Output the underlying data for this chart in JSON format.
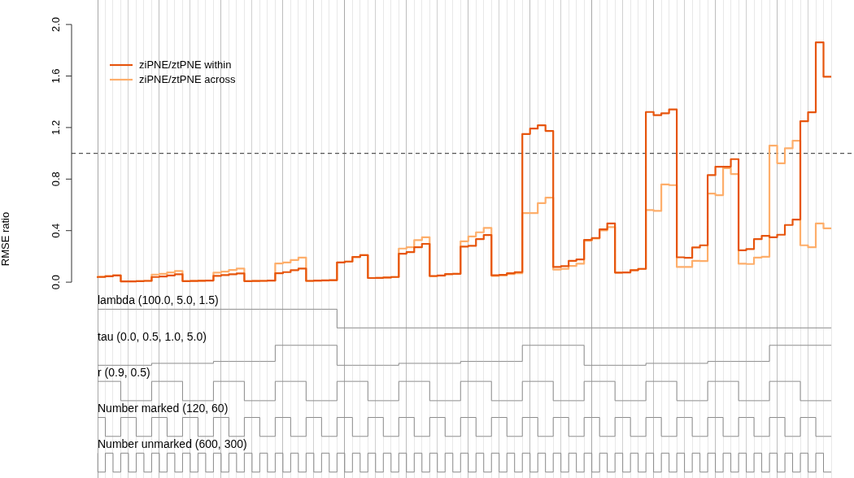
{
  "chart_data": {
    "type": "step",
    "ylabel": "RMSE ratio",
    "legend": "top left",
    "grid": "x",
    "tick_labels": "y",
    "categories": [
      null,
      null,
      null,
      null,
      null,
      null,
      null,
      null,
      null,
      null,
      null,
      null,
      null,
      null,
      null,
      null,
      null,
      null,
      null,
      null,
      null,
      null,
      null,
      null,
      null,
      null,
      null,
      null,
      null,
      null,
      null,
      null,
      null,
      null,
      null,
      null,
      null,
      null,
      null,
      null,
      null,
      null,
      null,
      null,
      null,
      null,
      null,
      null,
      null,
      null,
      null,
      null,
      null,
      null,
      null,
      null,
      null,
      null,
      null,
      null,
      null,
      null,
      null,
      null,
      null,
      null,
      null,
      null,
      null,
      null,
      null,
      null,
      null,
      null,
      null,
      null,
      null,
      null,
      null,
      null,
      null,
      null,
      null,
      null,
      null,
      null,
      null,
      null,
      null,
      null,
      null,
      null,
      null,
      null,
      null,
      null
    ],
    "ylim": [
      -1.52,
      2.19
    ],
    "yticks": [
      {
        "value": 0,
        "label": "0.0"
      },
      0.4,
      0.8,
      1.2,
      1.6,
      {
        "value": 2,
        "label": "2.0"
      }
    ],
    "series": [
      {
        "name": "ziPNE/ztPNE within",
        "color": "#e6550d",
        "values": [
          0.033,
          0.04,
          0.046,
          0.052,
          0.006,
          0.006,
          0.008,
          0.01,
          0.04,
          0.044,
          0.052,
          0.061,
          0.008,
          0.009,
          0.011,
          0.013,
          0.049,
          0.055,
          0.061,
          0.068,
          0.008,
          0.009,
          0.01,
          0.012,
          0.069,
          0.078,
          0.093,
          0.105,
          0.01,
          0.012,
          0.014,
          0.016,
          0.153,
          0.16,
          0.196,
          0.21,
          0.032,
          0.033,
          0.036,
          0.04,
          0.221,
          0.233,
          0.271,
          0.297,
          0.048,
          0.052,
          0.063,
          0.065,
          0.276,
          0.282,
          0.334,
          0.366,
          0.053,
          0.057,
          0.069,
          0.078,
          1.15,
          1.192,
          1.218,
          1.174,
          0.118,
          0.124,
          0.166,
          0.177,
          0.328,
          0.343,
          0.41,
          0.456,
          0.074,
          0.076,
          0.093,
          0.103,
          1.321,
          1.296,
          1.311,
          1.34,
          0.193,
          0.189,
          0.269,
          0.286,
          0.831,
          0.896,
          0.896,
          0.955,
          0.248,
          0.257,
          0.334,
          0.36,
          0.349,
          0.368,
          0.444,
          0.486,
          1.249,
          1.319,
          1.861,
          1.594
        ]
      },
      {
        "name": "ziPNE/ztPNE across",
        "color": "#fdae6b",
        "values": [
          0.035,
          0.042,
          0.048,
          0.054,
          0.006,
          0.006,
          0.008,
          0.01,
          0.059,
          0.065,
          0.076,
          0.086,
          0.008,
          0.01,
          0.011,
          0.013,
          0.074,
          0.082,
          0.095,
          0.105,
          0.008,
          0.009,
          0.01,
          0.012,
          0.145,
          0.153,
          0.172,
          0.191,
          0.009,
          0.011,
          0.013,
          0.014,
          0.153,
          0.16,
          0.196,
          0.21,
          0.032,
          0.033,
          0.036,
          0.04,
          0.261,
          0.271,
          0.326,
          0.349,
          0.046,
          0.05,
          0.061,
          0.065,
          0.317,
          0.355,
          0.387,
          0.421,
          0.049,
          0.053,
          0.063,
          0.069,
          0.536,
          0.536,
          0.614,
          0.656,
          0.097,
          0.103,
          0.126,
          0.143,
          0.322,
          0.339,
          0.402,
          0.427,
          0.074,
          0.076,
          0.093,
          0.103,
          0.56,
          0.553,
          0.759,
          0.753,
          0.118,
          0.118,
          0.166,
          0.164,
          0.688,
          0.675,
          0.885,
          0.839,
          0.143,
          0.141,
          0.191,
          0.197,
          1.06,
          0.923,
          1.039,
          1.098,
          0.286,
          0.271,
          0.456,
          0.418
        ]
      },
      {
        "color": "#8c8c8c",
        "values": [
          -0.21,
          -0.21,
          -0.21,
          -0.21,
          -0.21,
          -0.21,
          -0.21,
          -0.21,
          -0.21,
          -0.21,
          -0.21,
          -0.21,
          -0.21,
          -0.21,
          -0.21,
          -0.21,
          -0.21,
          -0.21,
          -0.21,
          -0.21,
          -0.21,
          -0.21,
          -0.21,
          -0.21,
          -0.21,
          -0.21,
          -0.21,
          -0.21,
          -0.21,
          -0.21,
          -0.21,
          -0.21,
          -0.355,
          -0.355,
          -0.355,
          -0.355,
          -0.355,
          -0.355,
          -0.355,
          -0.355,
          -0.355,
          -0.355,
          -0.355,
          -0.355,
          -0.355,
          -0.355,
          -0.355,
          -0.355,
          -0.355,
          -0.355,
          -0.355,
          -0.355,
          -0.355,
          -0.355,
          -0.355,
          -0.355,
          -0.355,
          -0.355,
          -0.355,
          -0.355,
          -0.355,
          -0.355,
          -0.355,
          -0.355,
          -0.355,
          -0.355,
          -0.355,
          -0.355,
          -0.355,
          -0.355,
          -0.355,
          -0.355,
          -0.355,
          -0.355,
          -0.355,
          -0.355,
          -0.355,
          -0.355,
          -0.355,
          -0.355,
          -0.355,
          -0.355,
          -0.355,
          -0.355,
          -0.355,
          -0.355,
          -0.355,
          -0.355,
          -0.355,
          -0.355,
          -0.355,
          -0.355,
          -0.355,
          -0.355,
          -0.355,
          -0.355
        ]
      },
      {
        "color": "#8c8c8c",
        "values": [
          -0.645,
          -0.645,
          -0.645,
          -0.645,
          -0.645,
          -0.645,
          -0.645,
          -0.645,
          -0.63,
          -0.63,
          -0.63,
          -0.63,
          -0.63,
          -0.63,
          -0.63,
          -0.63,
          -0.615,
          -0.615,
          -0.615,
          -0.615,
          -0.615,
          -0.615,
          -0.615,
          -0.615,
          -0.49,
          -0.49,
          -0.49,
          -0.49,
          -0.49,
          -0.49,
          -0.49,
          -0.49,
          -0.645,
          -0.645,
          -0.645,
          -0.645,
          -0.645,
          -0.645,
          -0.645,
          -0.645,
          -0.63,
          -0.63,
          -0.63,
          -0.63,
          -0.63,
          -0.63,
          -0.63,
          -0.63,
          -0.615,
          -0.615,
          -0.615,
          -0.615,
          -0.615,
          -0.615,
          -0.615,
          -0.615,
          -0.49,
          -0.49,
          -0.49,
          -0.49,
          -0.49,
          -0.49,
          -0.49,
          -0.49,
          -0.645,
          -0.645,
          -0.645,
          -0.645,
          -0.645,
          -0.645,
          -0.645,
          -0.645,
          -0.63,
          -0.63,
          -0.63,
          -0.63,
          -0.63,
          -0.63,
          -0.63,
          -0.63,
          -0.615,
          -0.615,
          -0.615,
          -0.615,
          -0.615,
          -0.615,
          -0.615,
          -0.615,
          -0.49,
          -0.49,
          -0.49,
          -0.49,
          -0.49,
          -0.49,
          -0.49,
          -0.49
        ]
      },
      {
        "color": "#8c8c8c",
        "values": [
          -0.77,
          -0.77,
          -0.77,
          -0.77,
          -0.92,
          -0.92,
          -0.92,
          -0.92,
          -0.77,
          -0.77,
          -0.77,
          -0.77,
          -0.92,
          -0.92,
          -0.92,
          -0.92,
          -0.77,
          -0.77,
          -0.77,
          -0.77,
          -0.92,
          -0.92,
          -0.92,
          -0.92,
          -0.77,
          -0.77,
          -0.77,
          -0.77,
          -0.92,
          -0.92,
          -0.92,
          -0.92,
          -0.77,
          -0.77,
          -0.77,
          -0.77,
          -0.92,
          -0.92,
          -0.92,
          -0.92,
          -0.77,
          -0.77,
          -0.77,
          -0.77,
          -0.92,
          -0.92,
          -0.92,
          -0.92,
          -0.77,
          -0.77,
          -0.77,
          -0.77,
          -0.92,
          -0.92,
          -0.92,
          -0.92,
          -0.77,
          -0.77,
          -0.77,
          -0.77,
          -0.92,
          -0.92,
          -0.92,
          -0.92,
          -0.77,
          -0.77,
          -0.77,
          -0.77,
          -0.92,
          -0.92,
          -0.92,
          -0.92,
          -0.77,
          -0.77,
          -0.77,
          -0.77,
          -0.92,
          -0.92,
          -0.92,
          -0.92,
          -0.77,
          -0.77,
          -0.77,
          -0.77,
          -0.92,
          -0.92,
          -0.92,
          -0.92,
          -0.77,
          -0.77,
          -0.77,
          -0.77,
          -0.92,
          -0.92,
          -0.92,
          -0.92
        ]
      },
      {
        "color": "#8c8c8c",
        "values": [
          -1.05,
          -1.05,
          -1.197,
          -1.197,
          -1.05,
          -1.05,
          -1.197,
          -1.197,
          -1.05,
          -1.05,
          -1.197,
          -1.197,
          -1.05,
          -1.05,
          -1.197,
          -1.197,
          -1.05,
          -1.05,
          -1.197,
          -1.197,
          -1.05,
          -1.05,
          -1.197,
          -1.197,
          -1.05,
          -1.05,
          -1.197,
          -1.197,
          -1.05,
          -1.05,
          -1.197,
          -1.197,
          -1.05,
          -1.05,
          -1.197,
          -1.197,
          -1.05,
          -1.05,
          -1.197,
          -1.197,
          -1.05,
          -1.05,
          -1.197,
          -1.197,
          -1.05,
          -1.05,
          -1.197,
          -1.197,
          -1.05,
          -1.05,
          -1.197,
          -1.197,
          -1.05,
          -1.05,
          -1.197,
          -1.197,
          -1.05,
          -1.05,
          -1.197,
          -1.197,
          -1.05,
          -1.05,
          -1.197,
          -1.197,
          -1.05,
          -1.05,
          -1.197,
          -1.197,
          -1.05,
          -1.05,
          -1.197,
          -1.197,
          -1.05,
          -1.05,
          -1.197,
          -1.197,
          -1.05,
          -1.05,
          -1.197,
          -1.197,
          -1.05,
          -1.05,
          -1.197,
          -1.197,
          -1.05,
          -1.05,
          -1.197,
          -1.197,
          -1.05,
          -1.05,
          -1.197,
          -1.197,
          -1.05,
          -1.05,
          -1.197,
          -1.197
        ]
      },
      {
        "color": "#8c8c8c",
        "values": [
          -1.327,
          -1.474,
          -1.327,
          -1.474,
          -1.327,
          -1.474,
          -1.327,
          -1.474,
          -1.327,
          -1.474,
          -1.327,
          -1.474,
          -1.327,
          -1.474,
          -1.327,
          -1.474,
          -1.327,
          -1.474,
          -1.327,
          -1.474,
          -1.327,
          -1.474,
          -1.327,
          -1.474,
          -1.327,
          -1.474,
          -1.327,
          -1.474,
          -1.327,
          -1.474,
          -1.327,
          -1.474,
          -1.327,
          -1.474,
          -1.327,
          -1.474,
          -1.327,
          -1.474,
          -1.327,
          -1.474,
          -1.327,
          -1.474,
          -1.327,
          -1.474,
          -1.327,
          -1.474,
          -1.327,
          -1.474,
          -1.327,
          -1.474,
          -1.327,
          -1.474,
          -1.327,
          -1.474,
          -1.327,
          -1.474,
          -1.327,
          -1.474,
          -1.327,
          -1.474,
          -1.327,
          -1.474,
          -1.327,
          -1.474,
          -1.327,
          -1.474,
          -1.327,
          -1.474,
          -1.327,
          -1.474,
          -1.327,
          -1.474,
          -1.327,
          -1.474,
          -1.327,
          -1.474,
          -1.327,
          -1.474,
          -1.327,
          -1.474,
          -1.327,
          -1.474,
          -1.327,
          -1.474,
          -1.327,
          -1.474,
          -1.327,
          -1.474,
          -1.327,
          -1.474,
          -1.327,
          -1.474,
          -1.327,
          -1.474,
          -1.327,
          -1.474
        ]
      }
    ],
    "ref_lines": [
      {
        "axis": "y",
        "value": 1,
        "color": "#555555",
        "line_style": "dashed"
      }
    ],
    "annotations": [
      "lambda (100.0, 5.0, 1.5)",
      "tau (0.0, 0.5, 1.0, 5.0)",
      "r (0.9, 0.5)",
      "Number marked (120, 60)",
      "Number unmarked (600, 300)"
    ]
  }
}
